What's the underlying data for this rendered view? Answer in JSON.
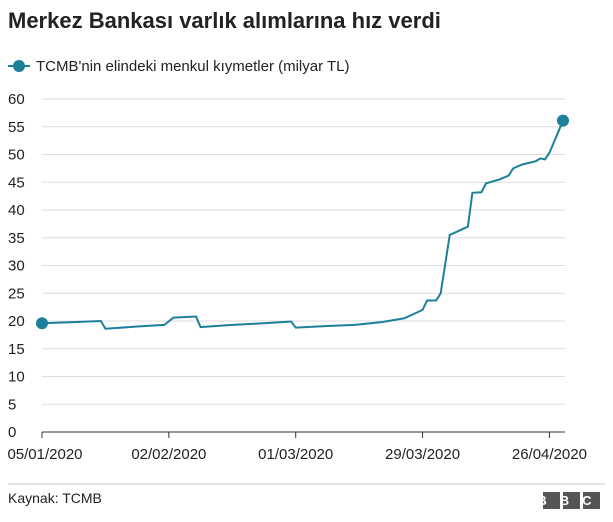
{
  "chart_data": {
    "type": "line",
    "title": "Merkez Bankası varlık alımlarına hız verdi",
    "source": "Kaynak: TCMB",
    "logo": "BBC",
    "x": [
      "2020-01-05",
      "2020-01-12",
      "2020-01-18",
      "2020-01-19",
      "2020-01-26",
      "2020-02-01",
      "2020-02-03",
      "2020-02-08",
      "2020-02-09",
      "2020-02-16",
      "2020-02-23",
      "2020-02-29",
      "2020-03-01",
      "2020-03-08",
      "2020-03-14",
      "2020-03-20",
      "2020-03-25",
      "2020-03-29",
      "2020-03-30",
      "2020-04-01",
      "2020-04-02",
      "2020-04-04",
      "2020-04-08",
      "2020-04-09",
      "2020-04-11",
      "2020-04-12",
      "2020-04-15",
      "2020-04-17",
      "2020-04-18",
      "2020-04-20",
      "2020-04-23",
      "2020-04-24",
      "2020-04-25",
      "2020-04-26",
      "2020-04-29"
    ],
    "series": [
      {
        "name": "TCMB'nin elindeki menkul kıymetler (milyar TL)",
        "color": "#1d809a",
        "values": [
          19.6,
          19.8,
          20.0,
          18.6,
          19.0,
          19.3,
          20.6,
          20.8,
          18.9,
          19.3,
          19.6,
          19.9,
          18.8,
          19.1,
          19.3,
          19.8,
          20.5,
          22.0,
          23.7,
          23.7,
          25.0,
          35.5,
          37.0,
          43.1,
          43.2,
          44.8,
          45.5,
          46.2,
          47.5,
          48.2,
          48.8,
          49.3,
          49.1,
          50.3,
          56.1
        ]
      }
    ],
    "xlim": [
      "2020-01-05",
      "2020-04-29"
    ],
    "xticks": [
      {
        "value": "2020-01-05",
        "label": "05/01/2020"
      },
      {
        "value": "2020-02-02",
        "label": "02/02/2020"
      },
      {
        "value": "2020-03-01",
        "label": "01/03/2020"
      },
      {
        "value": "2020-03-29",
        "label": "29/03/2020"
      },
      {
        "value": "2020-04-26",
        "label": "26/04/2020"
      }
    ],
    "ylim": [
      0,
      60
    ],
    "yticks": [
      0,
      5,
      10,
      15,
      20,
      25,
      30,
      35,
      40,
      45,
      50,
      55,
      60
    ],
    "grid": true
  }
}
